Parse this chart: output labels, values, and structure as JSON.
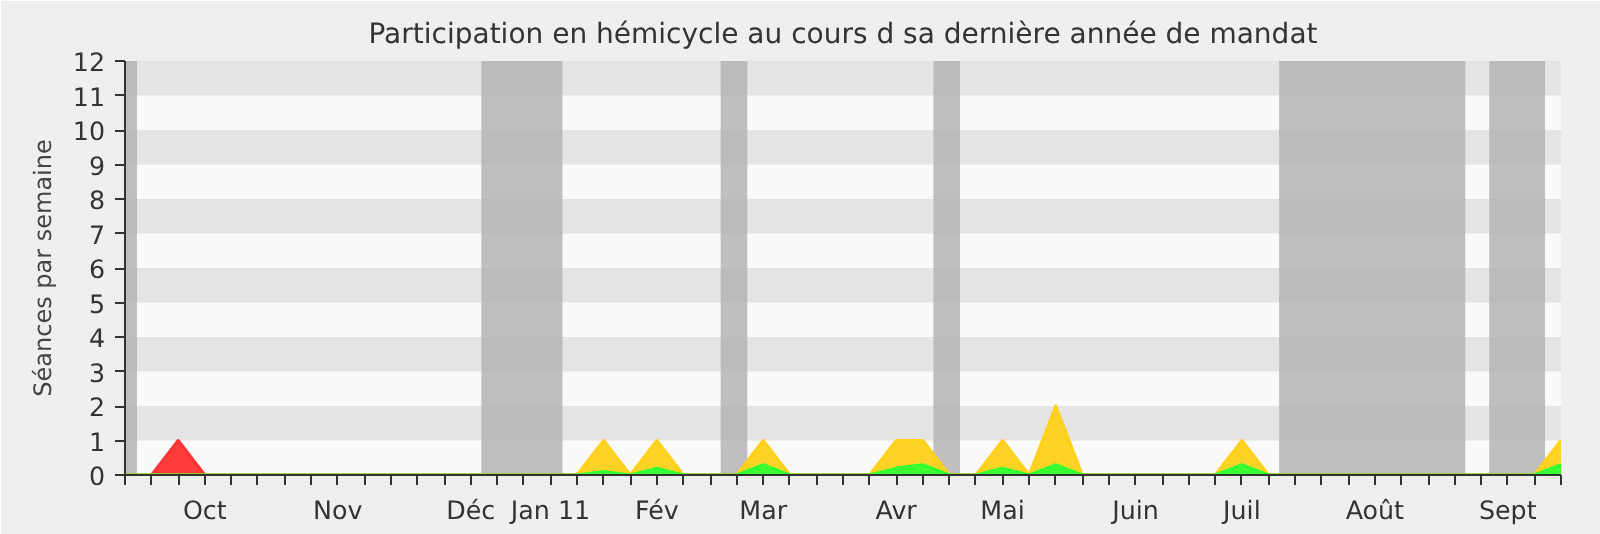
{
  "chart_data": {
    "type": "area",
    "title": "Participation en hémicycle au cours d sa dernière année de mandat",
    "ylabel": "Séances par semaine",
    "categories": [
      null,
      null,
      null,
      "Oct",
      null,
      null,
      null,
      null,
      "Nov",
      null,
      null,
      null,
      null,
      "Déc",
      null,
      null,
      "Jan 11",
      null,
      null,
      null,
      "Fév",
      null,
      null,
      null,
      "Mar",
      null,
      null,
      null,
      null,
      "Avr",
      null,
      null,
      null,
      "Mai",
      null,
      null,
      null,
      null,
      "Juin",
      null,
      null,
      null,
      "Juil",
      null,
      null,
      null,
      null,
      "Août",
      null,
      null,
      null,
      null,
      "Sept",
      null,
      null
    ],
    "series": [
      {
        "color": "#ff3333",
        "values": [
          0,
          0,
          1,
          0,
          0,
          0,
          0,
          0,
          0,
          0,
          0,
          0,
          0,
          0,
          0,
          0,
          0,
          0,
          0,
          0,
          0,
          0,
          0,
          0,
          0,
          0,
          0,
          0,
          0,
          0,
          0,
          0,
          0,
          0,
          0,
          0,
          0,
          0,
          0,
          0,
          0,
          0,
          0,
          0,
          0,
          0,
          0,
          0,
          0,
          0,
          0,
          0,
          0,
          0,
          0
        ]
      },
      {
        "color": "#ffd11a",
        "values": [
          0,
          0,
          0,
          0,
          0,
          0,
          0,
          0,
          0,
          0,
          0,
          0,
          0,
          0,
          0,
          0,
          0,
          0,
          1,
          0,
          1,
          0,
          0,
          0,
          1,
          0,
          0,
          0,
          0,
          1,
          1,
          0,
          0,
          1,
          0,
          2,
          0,
          0,
          0,
          0,
          0,
          0,
          1,
          0,
          0,
          0,
          0,
          0,
          0,
          0,
          0,
          0,
          0,
          0,
          1
        ]
      },
      {
        "color": "#33ff33",
        "values": [
          0,
          0,
          0,
          0,
          0,
          0,
          0,
          0,
          0,
          0,
          0,
          0,
          0,
          0,
          0,
          0,
          0,
          0,
          0.1,
          0,
          0.2,
          0,
          0,
          0,
          0.3,
          0,
          0,
          0,
          0,
          0.2,
          0.3,
          0,
          0,
          0.2,
          0,
          0.3,
          0,
          0,
          0,
          0,
          0,
          0,
          0.3,
          0,
          0,
          0,
          0,
          0,
          0,
          0,
          0,
          0,
          0,
          0,
          0.3
        ]
      }
    ],
    "ylim": [
      0,
      12
    ],
    "yticks": [
      0,
      1,
      2,
      3,
      4,
      5,
      6,
      7,
      8,
      9,
      10,
      11,
      12
    ]
  }
}
